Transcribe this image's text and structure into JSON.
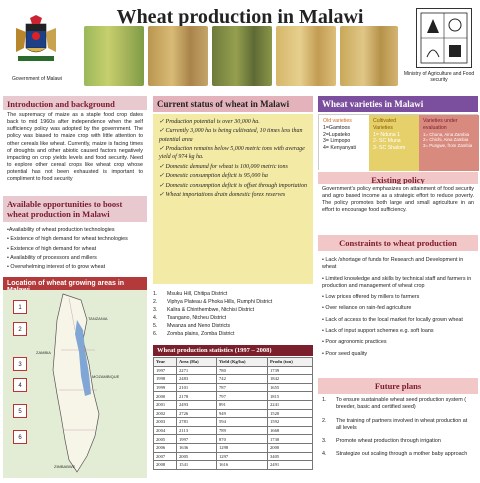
{
  "title": "Wheat production in Malawi",
  "header": {
    "left_caption": "Government of Malawi",
    "right_caption": "Ministry of Agriculture and Food security"
  },
  "intro": {
    "heading": "Introduction and background",
    "body": "The supremacy of maize as a staple food crop dates back to mid 1960s after independence when the self sufficiency policy was adopted by the government.  The policy was biased to maize crop with little attention to other cereals like wheat. Currently,  maize is facing times of droughts and other abiotic caused factors negatively impacting on crop yields levels and food security. Need to explore other cereal  crops like wheat crop whose potential has not been exhausted is important to compliment to food security"
  },
  "opportunities": {
    "heading": "Available opportunities to boost wheat production in Malawi",
    "items": [
      "•Availability of wheat production technologies",
      "• Existence of high demand for wheat technologies",
      "• Existence of high demand for wheat",
      "• Availability of processors and millers",
      "• Overwhelming interest of  to grow wheat"
    ]
  },
  "location": {
    "heading": "Location of wheat growing areas in Malawi",
    "markers": [
      "1",
      "2",
      "3",
      "4",
      "5",
      "6"
    ],
    "labels": {
      "tanzania": "TANZANIA",
      "zambia": "ZAMBIA",
      "mozambique": "MOZAMBIQUE",
      "zimbabwe": "ZIMBABWE"
    }
  },
  "districts": [
    "Msuku Hill,  Chitipa District",
    "Viphya Plateau & Phoka Hills,  Rumphi District",
    "Kalira & Chinthembwe,  Ntchisi District",
    "Tsangano,  Ntcheu District",
    "Mwanza and Neno Districts",
    "Zomba plains,    Zomba District"
  ],
  "district_numbers": [
    "1.",
    "2.",
    "3.",
    "4.",
    "5.",
    "6."
  ],
  "current": {
    "heading": "Current status of wheat in Malawi",
    "items": [
      "Production potential  is over 30,000 ha.",
      "Currently 3,000 ha is being cultivated, 10 times less than potential area",
      "Production remains below 5,000 metric tons with average     yield of   974 kg ha.",
      "Domestic demand for wheat is 100,000 metric tons",
      "Domestic  consumption deficit is 95,000 ha",
      "Domestic  consumption deficit is offset through importation",
      "Wheat importations drain domestic forex  reserves"
    ]
  },
  "stats": {
    "heading": "Wheat production statistics (1997 – 2008)",
    "columns": [
      "Year",
      "Area (Ha)",
      "Yield (Kg/ha)",
      "Produ (ton)"
    ],
    "rows": [
      [
        "1997",
        "2271",
        "780",
        "1739"
      ],
      [
        "1998",
        "2483",
        "742",
        "1842"
      ],
      [
        "1999",
        "2101",
        "787",
        "1655"
      ],
      [
        "2000",
        "2178",
        "797",
        "1815"
      ],
      [
        "2001",
        "2493",
        "891",
        "2241"
      ],
      [
        "2002",
        "2726",
        "949",
        "1520"
      ],
      [
        "2003",
        "2781",
        "594",
        "1592"
      ],
      [
        "2004",
        "2113",
        "789",
        "1668"
      ],
      [
        "2005",
        "1997",
        "870",
        "1730"
      ],
      [
        "2006",
        "1636",
        "1298",
        "2000"
      ],
      [
        "2007",
        "2005",
        "1297",
        "3405"
      ],
      [
        "2008",
        "1541",
        "1616",
        "2491"
      ]
    ]
  },
  "varieties": {
    "heading": "Wheat varieties in Malawi",
    "old": {
      "title": "Old varieties",
      "items": [
        "1=Gamtoos",
        "2=Lupateko",
        "3= Limpopo",
        "4= Kenyanyati"
      ]
    },
    "cultivated": {
      "title": "Cultivated Varieties",
      "items": [
        "1= Nduna 1",
        "2- SC Muna",
        "3- SC Shalom"
      ]
    },
    "evaluation": {
      "title": "Varieties under evaluation",
      "items": [
        "1= Chuna, Aina Zambia",
        "2= Chichi, Aina Zambia",
        "3= Pungwe, from Zambia"
      ]
    }
  },
  "policy": {
    "heading": "Existing policy",
    "body": "Government's policy emphasizes on attainment of food security and agro based income as  a strategic effort to reduce poverty. The policy  promotes both large and small agriculture in an effort to encourage food sufficiency."
  },
  "constraints": {
    "heading": "Constraints to wheat production",
    "items": [
      "Lack /shortage of funds for Research and Development in wheat",
      "Limited knowledge and skills by technical staff and farmers in production and management of wheat crop",
      "Low prices offered by millers to farmers",
      "Over reliance on rain-fed agriculture",
      "Lack of access to the local market for locally grown wheat",
      "Lack of input support schemes e.g. soft loans",
      "Poor agronomic practices",
      "Poor seed quality"
    ]
  },
  "future": {
    "heading": "Future plans",
    "numbers": [
      "1.",
      "2.",
      "3.",
      "4."
    ],
    "items": [
      "To ensure sustainable wheat seed production system ( breeder, basic and certified seed)",
      "The training of partners involved in wheat production at all levels",
      "Promote wheat production through  irrigation",
      "Strategize  out scaling through a mother baby approach"
    ]
  },
  "colors": {
    "heading_pink": "#e8c9cf",
    "heading_maroon": "#7a1a2e",
    "varieties_purple": "#7b4f9d",
    "panel_yellow": "#f3eaa6"
  }
}
